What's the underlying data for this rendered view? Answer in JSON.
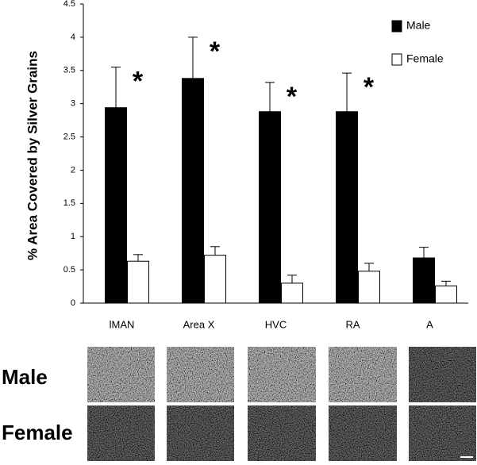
{
  "chart_data": {
    "type": "bar",
    "y_label": "% Area Covered by Silver Grains",
    "categories": [
      "lMAN",
      "Area X",
      "HVC",
      "RA",
      "A"
    ],
    "series": [
      {
        "name": "Male",
        "color": "#000000",
        "values": [
          2.94,
          3.38,
          2.88,
          2.88,
          0.68
        ],
        "errors": [
          0.61,
          0.62,
          0.44,
          0.58,
          0.16
        ]
      },
      {
        "name": "Female",
        "color": "#ffffff",
        "values": [
          0.63,
          0.72,
          0.3,
          0.48,
          0.26
        ],
        "errors": [
          0.1,
          0.13,
          0.12,
          0.12,
          0.07
        ]
      }
    ],
    "significance": [
      "*",
      "*",
      "*",
      "*",
      null
    ],
    "ylim": [
      0,
      4.5
    ],
    "yticks": [
      0,
      0.5,
      1,
      1.5,
      2,
      2.5,
      3,
      3.5,
      4,
      4.5
    ],
    "legend": "top-right",
    "grid": false
  },
  "micrographs": {
    "rows": [
      "Male",
      "Female"
    ]
  }
}
